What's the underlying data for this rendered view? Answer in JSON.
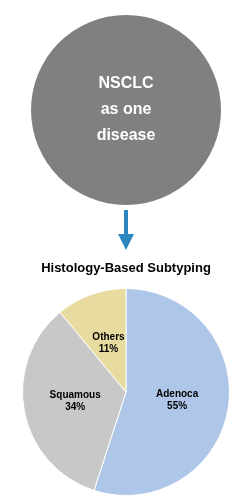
{
  "chart_data": {
    "type": "pie",
    "annotations": [
      "NSCLC\nas one\ndisease"
    ],
    "subtitle": "Histology-Based Subtyping",
    "categories": [
      "Adenoca",
      "Squamous",
      "Others"
    ],
    "values": [
      55,
      34,
      11
    ],
    "value_labels": [
      "55%",
      "34%",
      "11%"
    ],
    "colors": [
      "#aec6e8",
      "#c8c8c8",
      "#e8dba0"
    ],
    "data_labels": true
  }
}
